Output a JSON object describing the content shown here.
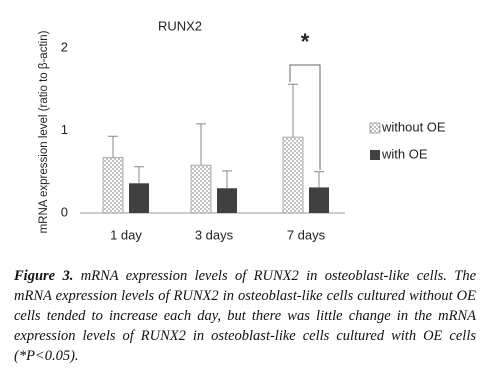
{
  "chart_data": {
    "type": "bar",
    "title": "RUNX2",
    "y_label": "mRNA expression level (ratio to β-actin)",
    "categories": [
      "1 day",
      "3 days",
      "7 days"
    ],
    "series": [
      {
        "name": "without OE",
        "color": "#ffffff",
        "pattern": "dots",
        "values": [
          0.67,
          0.58,
          0.92
        ],
        "errors": [
          0.26,
          0.5,
          0.64
        ]
      },
      {
        "name": "with OE",
        "color": "#404040",
        "values": [
          0.36,
          0.3,
          0.31
        ],
        "errors": [
          0.2,
          0.21,
          0.19
        ]
      }
    ],
    "ylim": [
      0,
      2
    ],
    "yticks": [
      0,
      1,
      2
    ],
    "grid": false,
    "legend": "right",
    "annotation": "*"
  },
  "caption": {
    "label": "Figure 3.",
    "text": "mRNA expression levels of RUNX2 in osteoblast-like cells. The mRNA expression levels of RUNX2 in osteoblast-like cells cultured without OE cells tended to increase each day, but there was little change in the mRNA expression levels of RUNX2 in osteoblast-like cells cultured with OE cells (*P<0.05)."
  }
}
